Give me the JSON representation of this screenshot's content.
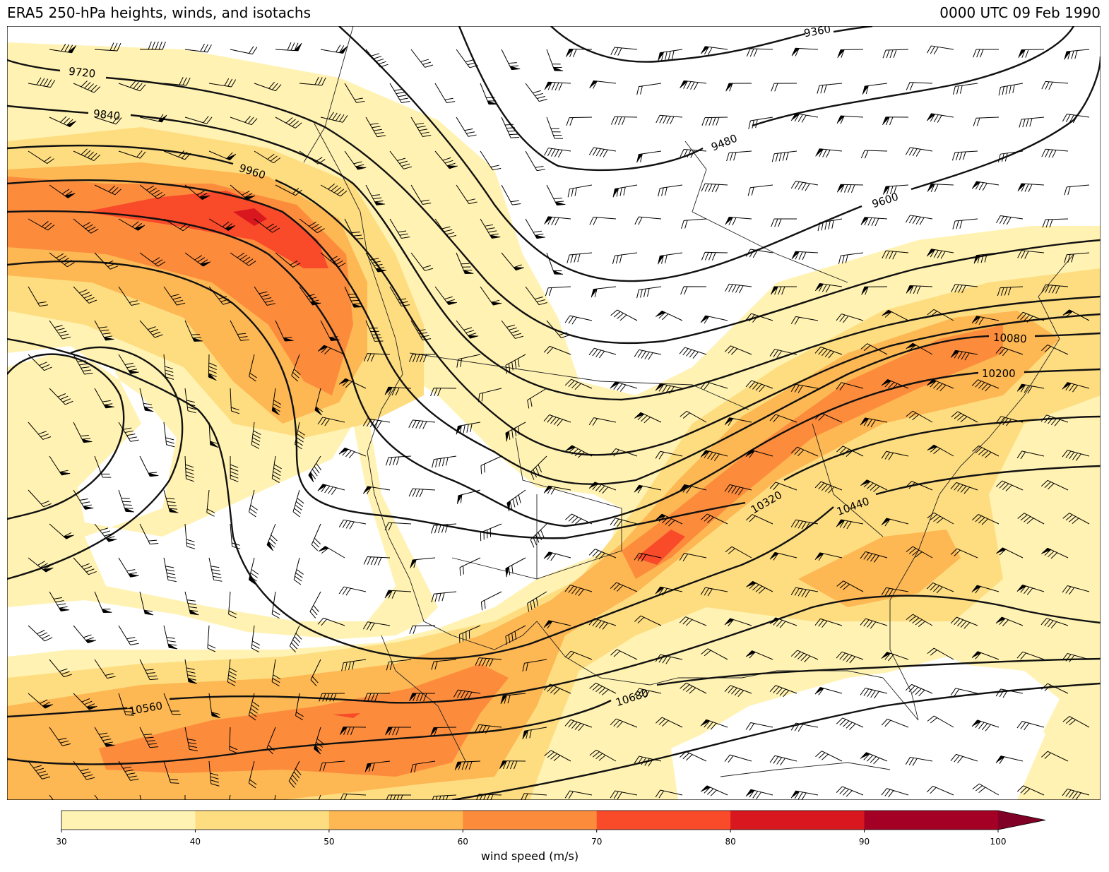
{
  "title_left": "ERA5 250-hPa heights, winds, and isotachs",
  "title_right": "0000 UTC 09 Feb 1990",
  "contour_labels": [
    "9360",
    "9480",
    "9600",
    "9720",
    "9840",
    "9960",
    "10080",
    "10200",
    "10320",
    "10440",
    "10560",
    "10680"
  ],
  "colorbar": {
    "label": "wind speed (m/s)",
    "ticks": [
      "30",
      "40",
      "50",
      "60",
      "70",
      "80",
      "90",
      "100"
    ],
    "levels": [
      30,
      40,
      50,
      60,
      70,
      80,
      90,
      100
    ],
    "colors": [
      "#fff2b2",
      "#fedd80",
      "#fdb753",
      "#fc8c3c",
      "#f94a2a",
      "#d8171f",
      "#a40025",
      "#800026"
    ],
    "extend": "max"
  }
}
